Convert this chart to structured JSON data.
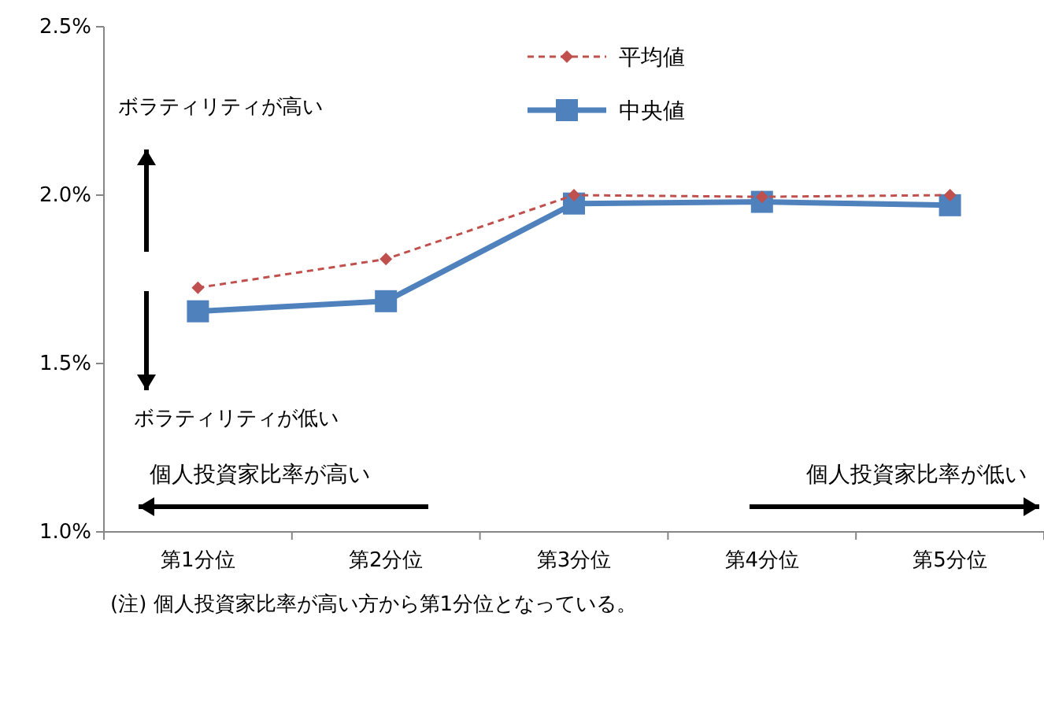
{
  "chart_data": {
    "type": "line",
    "categories": [
      "第1分位",
      "第2分位",
      "第3分位",
      "第4分位",
      "第5分位"
    ],
    "series": [
      {
        "name": "平均値",
        "color": "#c0504d",
        "values": [
          1.725,
          1.81,
          2.0,
          1.995,
          2.0
        ],
        "marker": "diamond",
        "line_style": "dashed"
      },
      {
        "name": "中央値",
        "color": "#4f81bd",
        "values": [
          1.655,
          1.685,
          1.975,
          1.98,
          1.97
        ],
        "marker": "square",
        "line_style": "solid"
      }
    ],
    "ylim": [
      1.0,
      2.5
    ],
    "yticks": [
      {
        "value": 1.0,
        "label": "1.0%"
      },
      {
        "value": 1.5,
        "label": "1.5%"
      },
      {
        "value": 2.0,
        "label": "2.0%"
      },
      {
        "value": 2.5,
        "label": "2.5%"
      }
    ],
    "grid": false,
    "legend": "top",
    "annotations": [
      "ボラティリティが高い",
      "ボラティリティが低い",
      "個人投資家比率が高い",
      "個人投資家比率が低い",
      "(注) 個人投資家比率が高い方から第1分位となっている。"
    ]
  }
}
